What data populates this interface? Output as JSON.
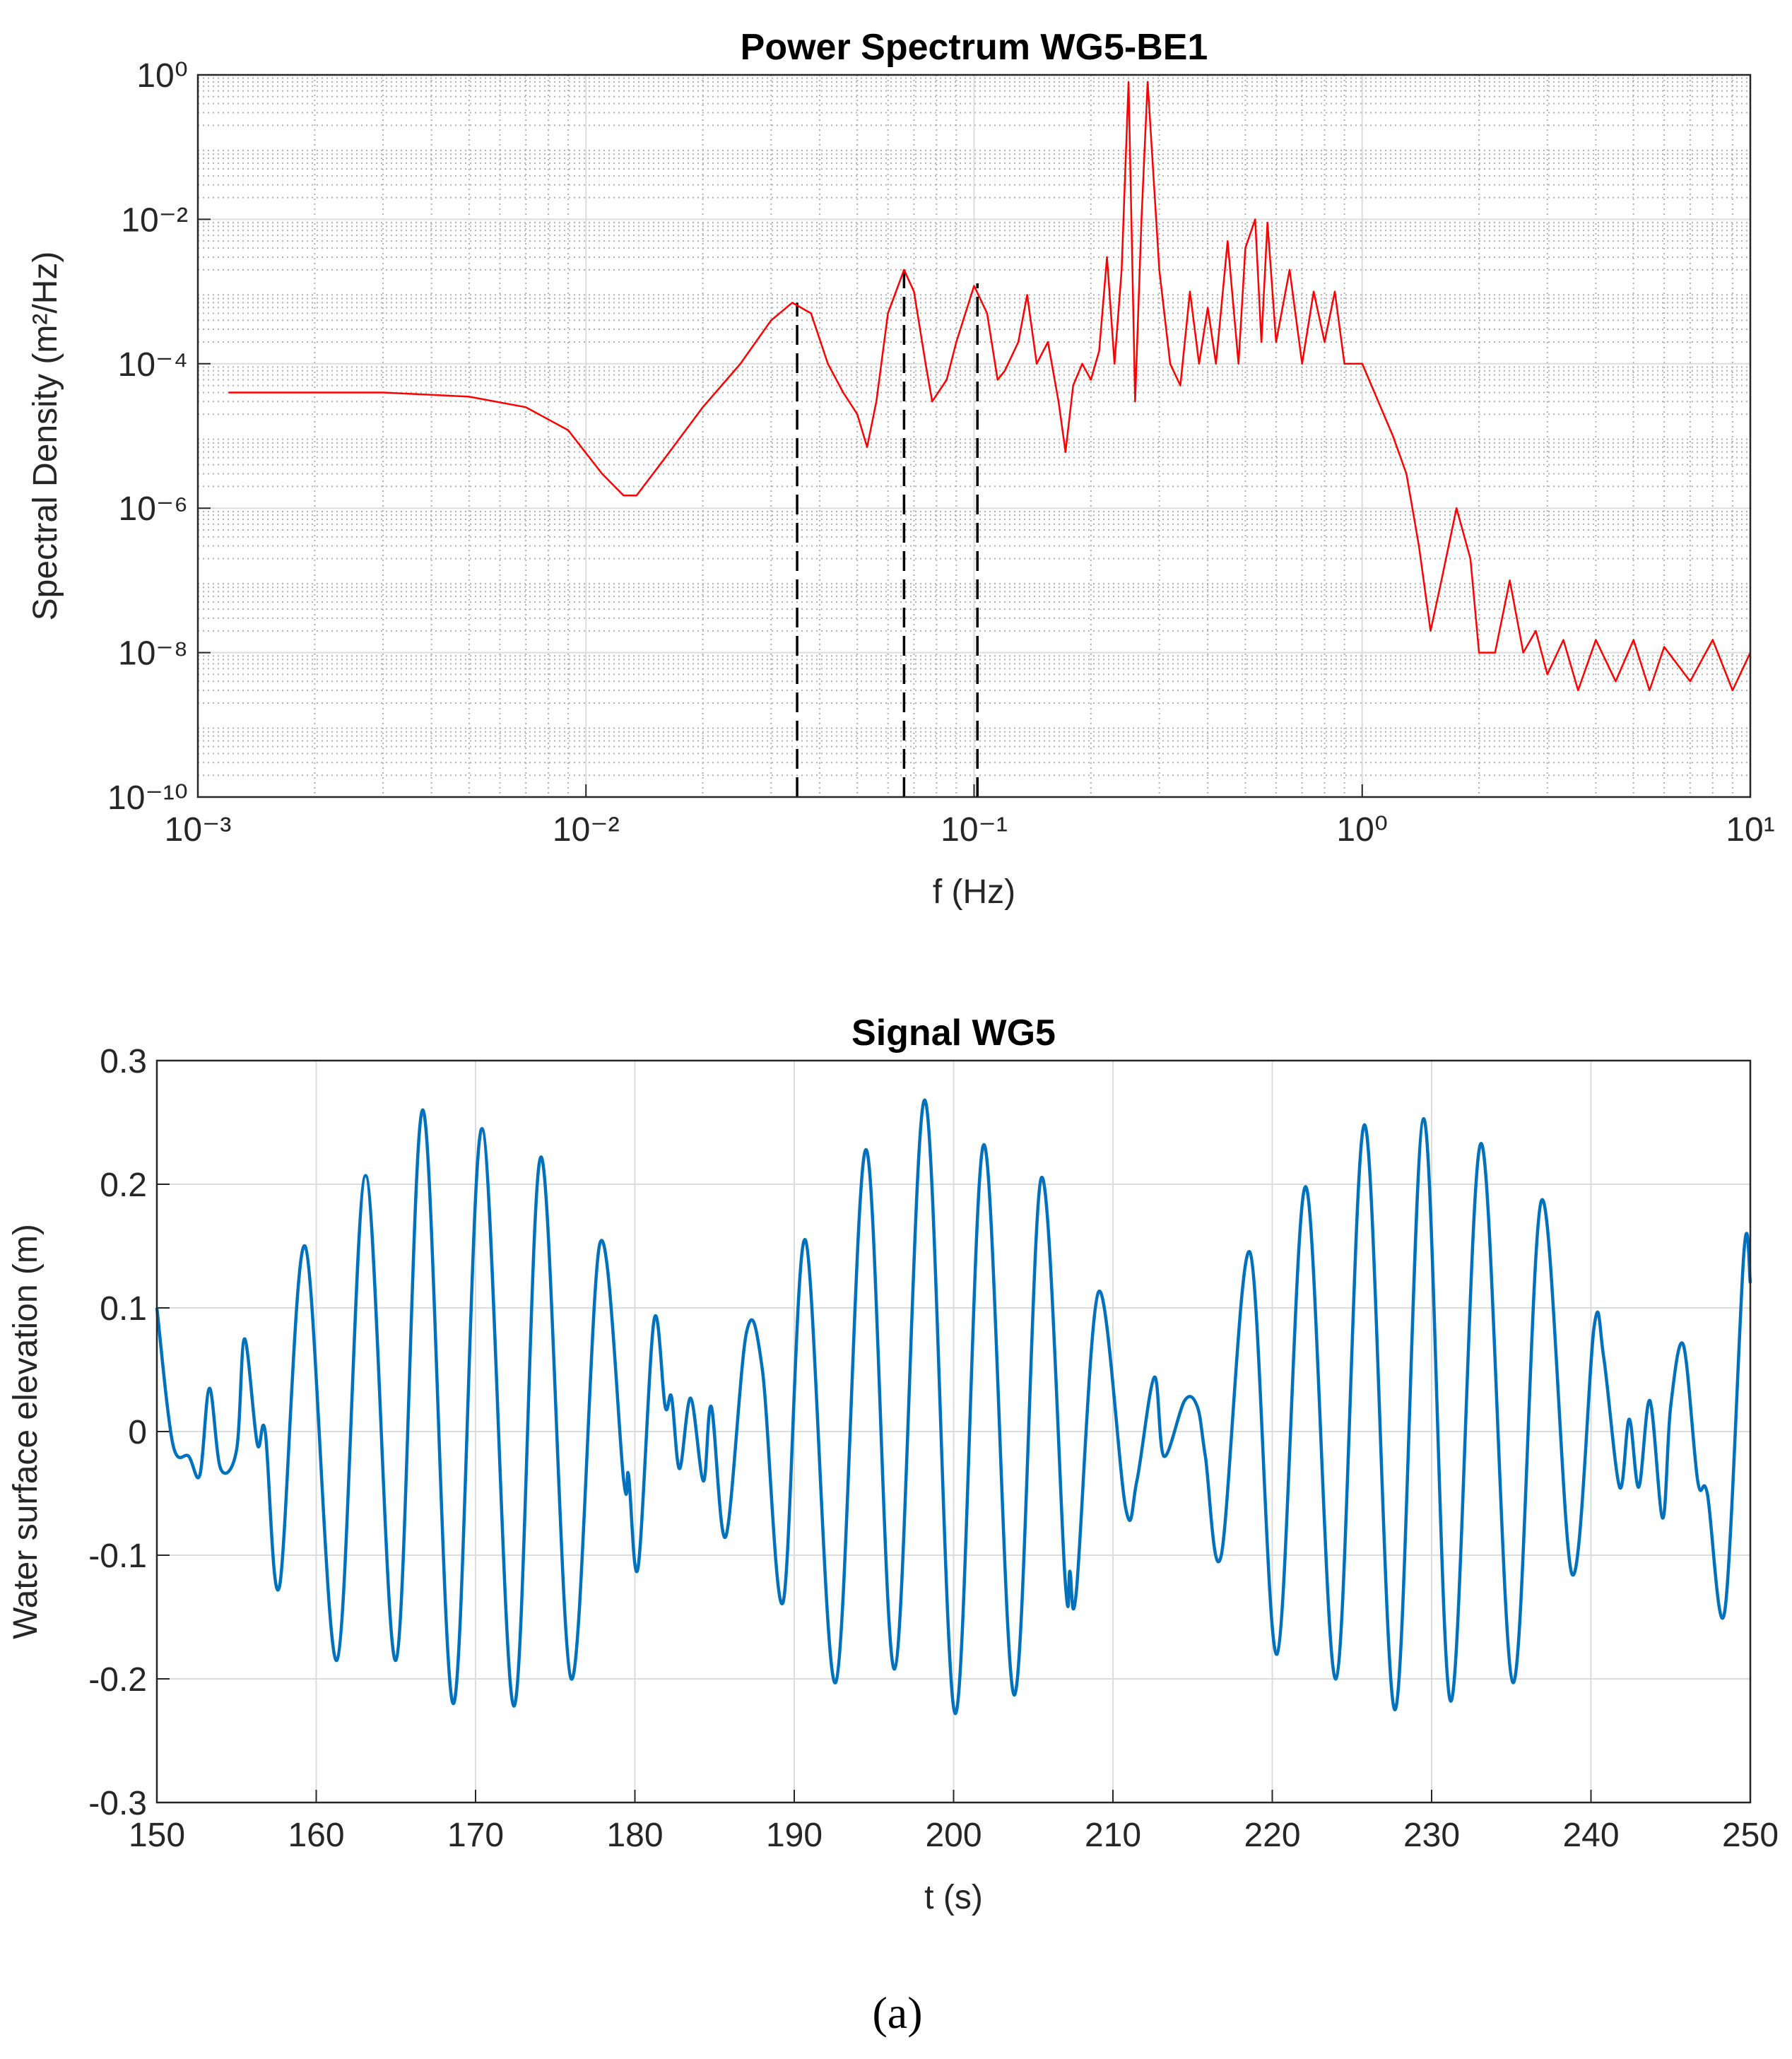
{
  "chart_data": [
    {
      "type": "line",
      "title": "Power Spectrum WG5-BE1",
      "xlabel": "f (Hz)",
      "ylabel": "Spectral Density (m²/Hz)",
      "xscale": "log",
      "yscale": "log",
      "x": [
        0.0012,
        0.003,
        0.005,
        0.007,
        0.009,
        0.011,
        0.0125,
        0.0135,
        0.016,
        0.02,
        0.025,
        0.03,
        0.034,
        0.038,
        0.042,
        0.046,
        0.05,
        0.053,
        0.056,
        0.06,
        0.066,
        0.07,
        0.075,
        0.078,
        0.085,
        0.09,
        0.1,
        0.108,
        0.115,
        0.12,
        0.13,
        0.137,
        0.145,
        0.155,
        0.165,
        0.172,
        0.18,
        0.19,
        0.2,
        0.21,
        0.22,
        0.23,
        0.24,
        0.25,
        0.26,
        0.27,
        0.28,
        0.3,
        0.32,
        0.34,
        0.36,
        0.38,
        0.4,
        0.42,
        0.45,
        0.48,
        0.5,
        0.53,
        0.55,
        0.57,
        0.6,
        0.65,
        0.7,
        0.75,
        0.8,
        0.85,
        0.9,
        1.0,
        1.1,
        1.2,
        1.3,
        1.4,
        1.5,
        1.6,
        1.75,
        1.9,
        2.0,
        2.2,
        2.4,
        2.6,
        2.8,
        3.0,
        3.3,
        3.6,
        4.0,
        4.5,
        5.0,
        5.5,
        6.0,
        7.0,
        8.0,
        9.0,
        10.0
      ],
      "series": [
        {
          "color": "#ff0000",
          "values": [
            4e-05,
            4e-05,
            3.5e-05,
            2.5e-05,
            1.2e-05,
            3e-06,
            1.5e-06,
            1.5e-06,
            5e-06,
            2.5e-05,
            0.0001,
            0.0004,
            0.0007,
            0.0005,
            0.0001,
            4e-05,
            2e-05,
            7e-06,
            3e-05,
            0.0005,
            0.002,
            0.001,
            0.0001,
            3e-05,
            6e-05,
            0.0002,
            0.0012,
            0.0005,
            6e-05,
            8e-05,
            0.0002,
            0.0009,
            0.0001,
            0.0002,
            3e-05,
            6e-06,
            5e-05,
            0.0001,
            6e-05,
            0.00015,
            0.003,
            0.0001,
            0.002,
            0.8,
            3e-05,
            0.01,
            0.8,
            0.002,
            0.0001,
            5e-05,
            0.001,
            0.0001,
            0.0006,
            0.0001,
            0.005,
            0.0001,
            0.004,
            0.01,
            0.0002,
            0.009,
            0.0002,
            0.002,
            0.0001,
            0.001,
            0.0002,
            0.001,
            0.0001,
            0.0001,
            3e-05,
            1e-05,
            3e-06,
            3e-07,
            2e-08,
            1e-07,
            1e-06,
            2e-07,
            1e-08,
            1e-08,
            1e-07,
            1e-08,
            2e-08,
            5e-09,
            1.5e-08,
            3e-09,
            1.5e-08,
            4e-09,
            1.5e-08,
            3e-09,
            1.2e-08,
            4e-09,
            1.5e-08,
            3e-09,
            1e-08
          ]
        }
      ],
      "vlines": {
        "x": [
          0.035,
          0.066,
          0.102
        ],
        "y": [
          0.0007,
          0.002,
          0.0013
        ],
        "color": "#000000",
        "style": "dashed"
      },
      "xlim": [
        0.001,
        10
      ],
      "xticks": [
        {
          "value": 0.001,
          "label": "10⁻³"
        },
        {
          "value": 0.01,
          "label": "10⁻²"
        },
        {
          "value": 0.1,
          "label": "10⁻¹"
        },
        {
          "value": 1,
          "label": "10⁰"
        },
        {
          "value": 10,
          "label": "10¹"
        }
      ],
      "ylim": [
        1e-10,
        1
      ],
      "yticks": [
        {
          "value": 1e-10,
          "label": "10⁻¹⁰"
        },
        {
          "value": 1e-08,
          "label": "10⁻⁸"
        },
        {
          "value": 1e-06,
          "label": "10⁻⁶"
        },
        {
          "value": 0.0001,
          "label": "10⁻⁴"
        },
        {
          "value": 0.01,
          "label": "10⁻²"
        },
        {
          "value": 1,
          "label": "10⁰"
        }
      ],
      "grid": true,
      "minor_grid": true
    },
    {
      "type": "line",
      "title": "Signal WG5",
      "xlabel": "t (s)",
      "ylabel": "Water surface elevation (m)",
      "x": [
        150,
        151,
        152,
        152.7,
        153.3,
        154,
        155,
        155.5,
        156.3,
        156.8,
        157.7,
        159.3,
        161.3,
        163.1,
        165,
        166.7,
        168.6,
        170.4,
        172.4,
        174.1,
        176,
        177.8,
        179.3,
        179.6,
        180.2,
        181.2,
        181.9,
        182.3,
        182.8,
        183.5,
        184.3,
        184.8,
        185.7,
        187,
        188,
        189.3,
        190.7,
        192.6,
        194.5,
        196.3,
        198.2,
        200.1,
        201.9,
        203.8,
        205.5,
        207,
        207.3,
        207.7,
        209.1,
        210.8,
        211.5,
        212.6,
        213.2,
        214.5,
        215.3,
        215.8,
        216.8,
        218.6,
        220.3,
        222.1,
        224,
        225.8,
        227.7,
        229.5,
        231.2,
        233.1,
        235.1,
        236.9,
        238.8,
        240.2,
        240.8,
        241.8,
        242.4,
        243,
        243.7,
        244.5,
        245,
        245.8,
        246.7,
        247.3,
        248.4,
        249.6,
        250
      ],
      "series": [
        {
          "color": "#0072bd",
          "values": [
            0.1,
            -0.01,
            -0.02,
            -0.035,
            0.035,
            -0.03,
            -0.015,
            0.075,
            -0.01,
            0,
            -0.125,
            0.15,
            -0.185,
            0.207,
            -0.185,
            0.26,
            -0.22,
            0.245,
            -0.222,
            0.222,
            -0.2,
            0.152,
            -0.04,
            -0.035,
            -0.11,
            0.09,
            0.02,
            0.028,
            -0.03,
            0.027,
            -0.04,
            0.02,
            -0.085,
            0.08,
            0.05,
            -0.138,
            0.155,
            -0.203,
            0.228,
            -0.192,
            0.268,
            -0.228,
            0.232,
            -0.213,
            0.205,
            -0.12,
            -0.113,
            -0.13,
            0.113,
            -0.062,
            -0.04,
            0.044,
            -0.02,
            0.025,
            0.02,
            -0.02,
            -0.1,
            0.145,
            -0.18,
            0.198,
            -0.2,
            0.248,
            -0.225,
            0.253,
            -0.218,
            0.233,
            -0.203,
            0.187,
            -0.115,
            0.085,
            0.06,
            -0.045,
            0.01,
            -0.045,
            0.025,
            -0.07,
            0.02,
            0.07,
            -0.04,
            -0.05,
            -0.145,
            0.145,
            0.12
          ]
        }
      ],
      "xlim": [
        150,
        250
      ],
      "xticks": [
        150,
        160,
        170,
        180,
        190,
        200,
        210,
        220,
        230,
        240,
        250
      ],
      "ylim": [
        -0.3,
        0.3
      ],
      "yticks": [
        -0.3,
        -0.2,
        -0.1,
        0,
        0.1,
        0.2,
        0.3
      ],
      "grid": true
    }
  ],
  "caption": "(a)"
}
